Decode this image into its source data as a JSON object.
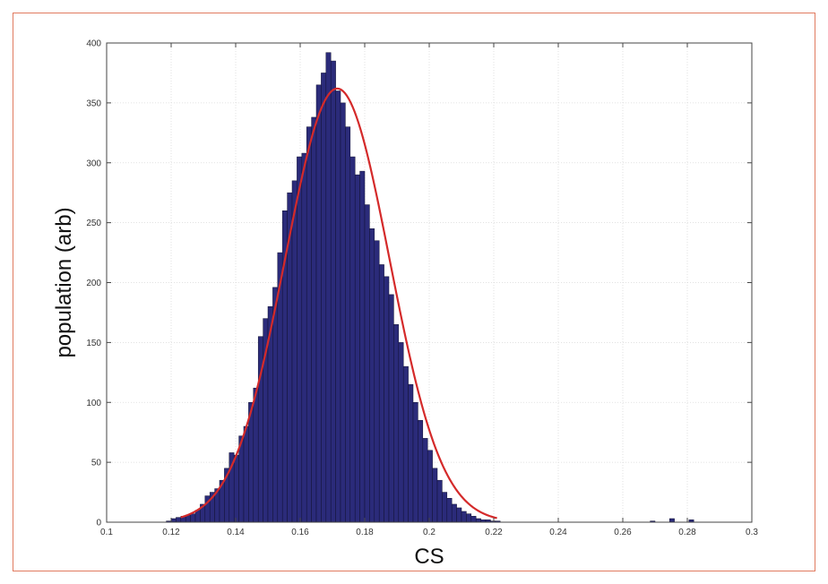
{
  "chart_data": {
    "type": "bar",
    "title": "",
    "xlabel": "CS",
    "ylabel": "population (arb)",
    "xlim": [
      0.1,
      0.3
    ],
    "ylim": [
      0,
      400
    ],
    "xticks": [
      0.1,
      0.12,
      0.14,
      0.16,
      0.18,
      0.2,
      0.22,
      0.24,
      0.26,
      0.28,
      0.3
    ],
    "xtick_labels": [
      "0.1",
      "0.12",
      "0.14",
      "0.16",
      "0.18",
      "0.2",
      "0.22",
      "0.24",
      "0.26",
      "0.28",
      "0.3"
    ],
    "yticks": [
      0,
      50,
      100,
      150,
      200,
      250,
      300,
      350,
      400
    ],
    "ytick_labels": [
      "0",
      "50",
      "100",
      "150",
      "200",
      "250",
      "300",
      "350",
      "400"
    ],
    "grid": true,
    "bin_width": 0.0015,
    "bin_starts": [
      0.1185,
      0.12,
      0.1215,
      0.123,
      0.1245,
      0.126,
      0.1275,
      0.129,
      0.1305,
      0.132,
      0.1335,
      0.135,
      0.1365,
      0.138,
      0.1395,
      0.141,
      0.1425,
      0.144,
      0.1455,
      0.147,
      0.1485,
      0.15,
      0.1515,
      0.153,
      0.1545,
      0.156,
      0.1575,
      0.159,
      0.1605,
      0.162,
      0.1635,
      0.165,
      0.1665,
      0.168,
      0.1695,
      0.171,
      0.1725,
      0.174,
      0.1755,
      0.177,
      0.1785,
      0.18,
      0.1815,
      0.183,
      0.1845,
      0.186,
      0.1875,
      0.189,
      0.1905,
      0.192,
      0.1935,
      0.195,
      0.1965,
      0.198,
      0.1995,
      0.201,
      0.2025,
      0.204,
      0.2055,
      0.207,
      0.2085,
      0.21,
      0.2115,
      0.213,
      0.2145,
      0.216,
      0.2175,
      0.219,
      0.2205,
      0.2685,
      0.2745,
      0.2805
    ],
    "counts": [
      1,
      3,
      4,
      5,
      6,
      7,
      10,
      15,
      22,
      25,
      28,
      35,
      45,
      58,
      56,
      72,
      80,
      100,
      112,
      155,
      170,
      180,
      196,
      225,
      260,
      275,
      285,
      305,
      308,
      330,
      338,
      365,
      375,
      392,
      385,
      360,
      350,
      330,
      305,
      290,
      293,
      265,
      245,
      235,
      215,
      205,
      190,
      165,
      150,
      130,
      115,
      100,
      85,
      70,
      60,
      45,
      35,
      25,
      20,
      15,
      12,
      9,
      7,
      5,
      3,
      2,
      2,
      1,
      1,
      1,
      3,
      2
    ],
    "fit_curve": {
      "name": "",
      "color": "#d42a2a",
      "peak": 362,
      "mean": 0.1715,
      "sigma": 0.0162,
      "x_range": [
        0.123,
        0.221
      ]
    },
    "bar_color": "#2b2b7a",
    "bar_edge_color": "#111133"
  }
}
